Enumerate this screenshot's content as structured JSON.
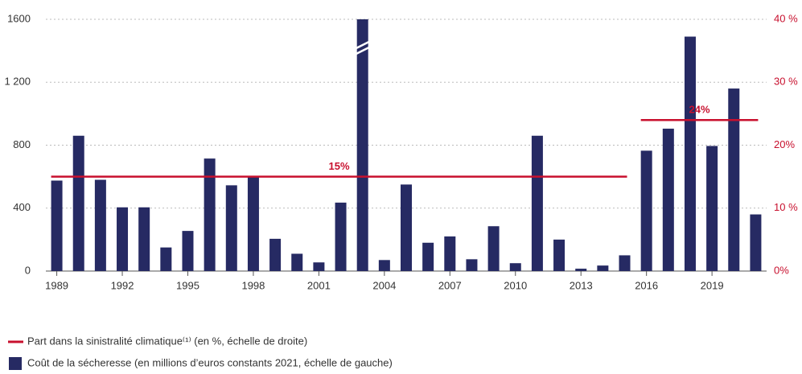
{
  "chart_data": {
    "type": "bar",
    "x": [
      1989,
      1990,
      1991,
      1992,
      1993,
      1994,
      1995,
      1996,
      1997,
      1998,
      1999,
      2000,
      2001,
      2002,
      2003,
      2004,
      2005,
      2006,
      2007,
      2008,
      2009,
      2010,
      2011,
      2012,
      2013,
      2014,
      2015,
      2016,
      2017,
      2018,
      2019,
      2020,
      2021
    ],
    "series": [
      {
        "name": "Coût de la sécheresse (en millions d’euros constants 2021, échelle de gauche)",
        "color": "#262a63",
        "values": [
          575,
          860,
          580,
          405,
          405,
          150,
          255,
          715,
          545,
          600,
          205,
          110,
          55,
          435,
          1600,
          70,
          550,
          180,
          220,
          75,
          285,
          50,
          860,
          200,
          15,
          35,
          100,
          765,
          905,
          1490,
          795,
          1160,
          360
        ]
      }
    ],
    "segments": {
      "name": "Part dans la sinistralité climatique⁽¹⁾ (en %, échelle de droite)",
      "color": "#c8102e",
      "axis": "y2",
      "items": [
        {
          "value": 15,
          "label": "15%",
          "start": 1989,
          "end": 2015
        },
        {
          "value": 24,
          "label": "24%",
          "start": 2016,
          "end": 2021
        }
      ]
    },
    "xlim": [
      1988.5,
      2021.5
    ],
    "xticks": [
      1989,
      1992,
      1995,
      1998,
      2001,
      2004,
      2007,
      2010,
      2013,
      2016,
      2019
    ],
    "ylim": [
      0,
      1600
    ],
    "yticks": [
      0,
      400,
      800,
      {
        "value": 1200,
        "label": "1 200"
      },
      1600
    ],
    "y2lim": [
      0,
      40
    ],
    "y2ticks": [
      {
        "value": 0,
        "label": "0%"
      },
      {
        "value": 10,
        "label": "10 %"
      },
      {
        "value": 20,
        "label": "20%"
      },
      {
        "value": 30,
        "label": "30 %"
      },
      {
        "value": 40,
        "label": "40 %"
      }
    ],
    "grid": true
  }
}
